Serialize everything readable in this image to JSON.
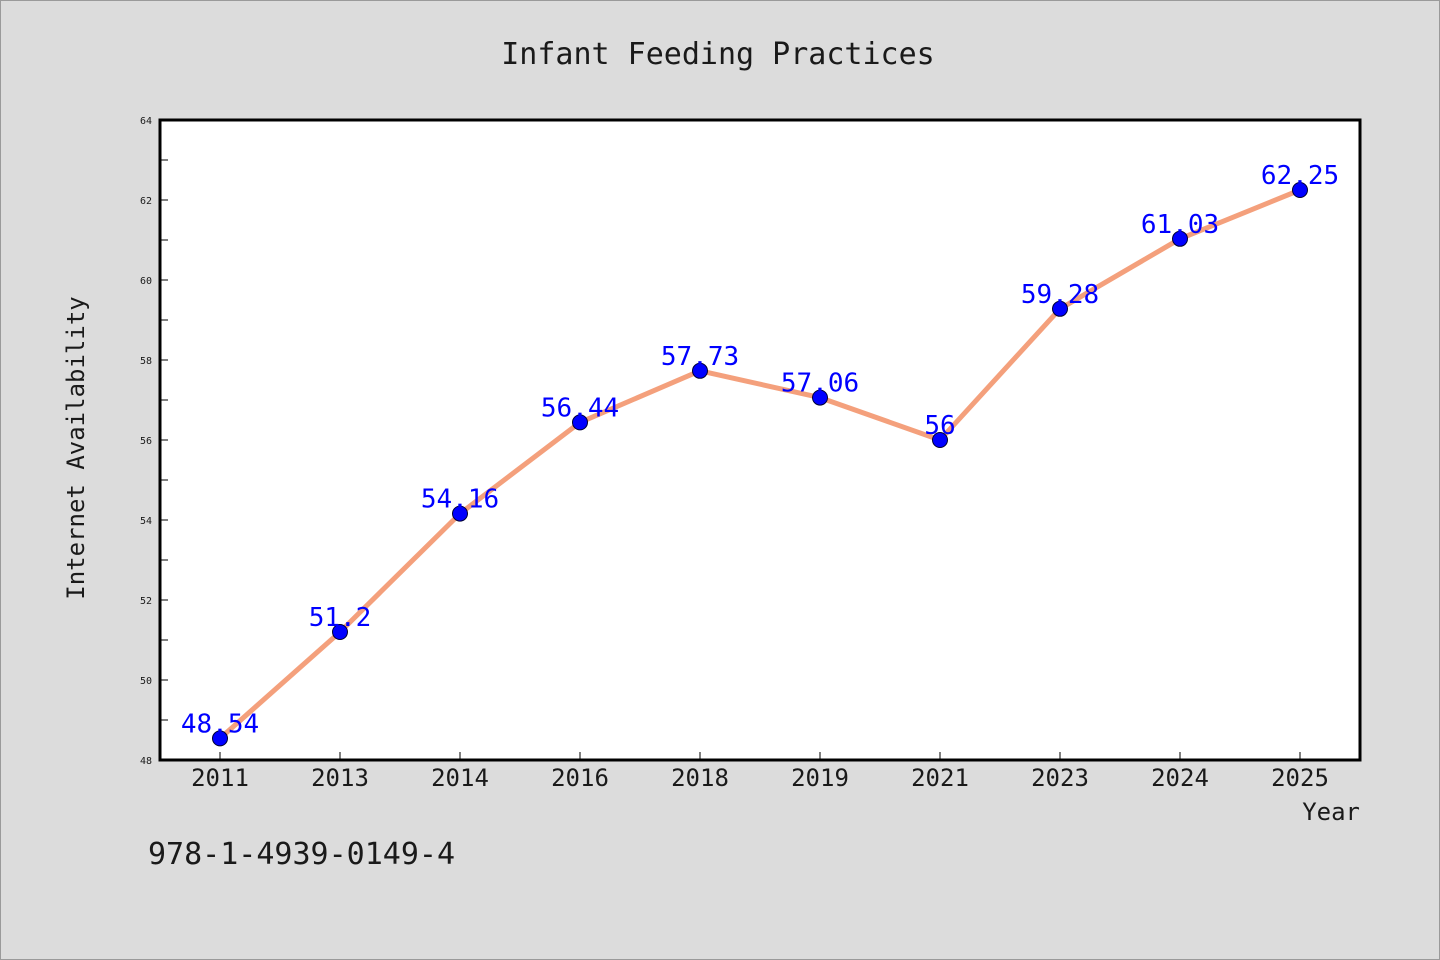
{
  "chart_data": {
    "type": "line",
    "title": "Infant Feeding Practices",
    "xlabel": "Year",
    "ylabel": "Internet Availability",
    "categories": [
      "2011",
      "2013",
      "2014",
      "2016",
      "2018",
      "2019",
      "2021",
      "2023",
      "2024",
      "2025"
    ],
    "series": [
      {
        "values": [
          48.54,
          51.2,
          54.16,
          56.44,
          57.73,
          57.06,
          56,
          59.28,
          61.03,
          62.25
        ],
        "labels": [
          "48.54",
          "51.2",
          "54.16",
          "56.44",
          "57.73",
          "57.06",
          "56",
          "59.28",
          "61.03",
          "62.25"
        ],
        "line_color": "#f4a07c",
        "marker_color": "#0000ff"
      }
    ],
    "ylim": [
      48,
      64
    ],
    "yticks": [
      "48",
      "50",
      "52",
      "54",
      "56",
      "58",
      "60",
      "62",
      "64"
    ],
    "grid": false,
    "legend": "none"
  },
  "footer": {
    "isbn": "978-1-4939-0149-4"
  }
}
